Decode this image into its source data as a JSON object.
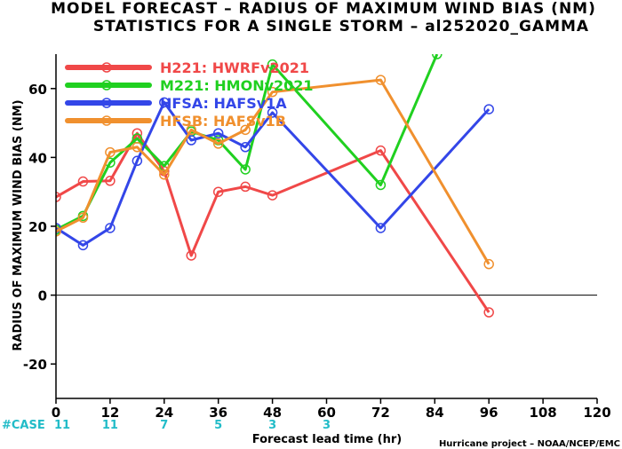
{
  "chart_data": {
    "type": "line",
    "title": "MODEL FORECAST – RADIUS OF MAXIMUM WIND BIAS (NM)",
    "subtitle": "STATISTICS FOR A SINGLE STORM – al252020_GAMMA",
    "xlabel": "Forecast lead time (hr)",
    "ylabel": "RADIUS OF MAXIMUM WIND BIAS (NM)",
    "xlim": [
      0,
      120
    ],
    "ylim": [
      -30,
      70
    ],
    "xticks": [
      0,
      12,
      24,
      36,
      48,
      60,
      72,
      84,
      96,
      108,
      120
    ],
    "yticks": [
      -20,
      0,
      20,
      40,
      60
    ],
    "case_label": "#CASE",
    "case_counts": [
      {
        "x": 0,
        "n": "11"
      },
      {
        "x": 12,
        "n": "11"
      },
      {
        "x": 24,
        "n": "7"
      },
      {
        "x": 36,
        "n": "5"
      },
      {
        "x": 48,
        "n": "3"
      },
      {
        "x": 60,
        "n": "3"
      }
    ],
    "credit": "Hurricane project – NOAA/NCEP/EMC",
    "legend_position": "top-left",
    "zero_line": true,
    "series": [
      {
        "name": "H221: HWRFv2021",
        "color": "#f04848",
        "x": [
          0,
          6,
          12,
          18,
          24,
          30,
          36,
          42,
          48,
          72,
          96
        ],
        "y": [
          28.5,
          33,
          33.2,
          47,
          36,
          11.5,
          30,
          31.5,
          29,
          42,
          -5
        ]
      },
      {
        "name": "M221: HMONv2021",
        "color": "#20d020",
        "x": [
          0,
          6,
          12,
          18,
          24,
          30,
          36,
          42,
          48,
          72,
          84.5
        ],
        "y": [
          19,
          23,
          38.5,
          45.5,
          37.5,
          47.5,
          45,
          36.5,
          67,
          32,
          70
        ]
      },
      {
        "name": "HFSA: HAFSv1A",
        "color": "#3346e8",
        "x": [
          0,
          6,
          12,
          18,
          24,
          30,
          36,
          42,
          48,
          72,
          96
        ],
        "y": [
          19.5,
          14.5,
          19.5,
          39,
          56,
          45,
          47,
          43,
          53,
          19.5,
          54
        ]
      },
      {
        "name": "HFSB: HAFSv1B",
        "color": "#f0902e",
        "x": [
          0,
          6,
          12,
          18,
          24,
          30,
          36,
          42,
          48,
          72,
          96
        ],
        "y": [
          18.5,
          22.5,
          41.5,
          43,
          35,
          48,
          44,
          48,
          59,
          62.5,
          9
        ]
      }
    ]
  }
}
